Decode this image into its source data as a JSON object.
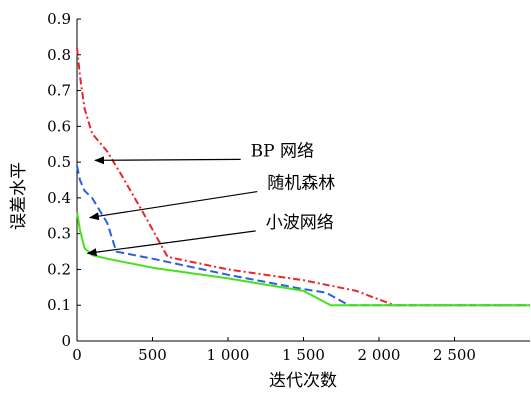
{
  "chart_data": {
    "type": "line",
    "title": "",
    "xlabel": "迭代次数",
    "ylabel": "误差水平",
    "xlim": [
      0,
      3000
    ],
    "ylim": [
      0,
      0.9
    ],
    "x_ticks": [
      {
        "value": 0,
        "label": "0"
      },
      {
        "value": 500,
        "label": "500"
      },
      {
        "value": 1000,
        "label": "1 000"
      },
      {
        "value": 1500,
        "label": "1 500"
      },
      {
        "value": 2000,
        "label": "2 000"
      },
      {
        "value": 2500,
        "label": "2 500"
      }
    ],
    "y_ticks": [
      {
        "value": 0,
        "label": "0"
      },
      {
        "value": 0.1,
        "label": "0.1"
      },
      {
        "value": 0.2,
        "label": "0.2"
      },
      {
        "value": 0.3,
        "label": "0.3"
      },
      {
        "value": 0.4,
        "label": "0.4"
      },
      {
        "value": 0.5,
        "label": "0.5"
      },
      {
        "value": 0.6,
        "label": "0.6"
      },
      {
        "value": 0.7,
        "label": "0.7"
      },
      {
        "value": 0.8,
        "label": "0.8"
      },
      {
        "value": 0.9,
        "label": "0.9"
      }
    ],
    "grid": false,
    "series": [
      {
        "name": "BP 网络",
        "color": "#e8262b",
        "dash": "dash-dot",
        "x": [
          0,
          20,
          50,
          100,
          200,
          300,
          450,
          600,
          1000,
          1500,
          1850,
          2100,
          3000
        ],
        "y": [
          0.82,
          0.74,
          0.65,
          0.58,
          0.53,
          0.46,
          0.35,
          0.235,
          0.2,
          0.17,
          0.14,
          0.1,
          0.1
        ]
      },
      {
        "name": "随机森林",
        "color": "#2a5fe0",
        "dash": "dashed",
        "x": [
          0,
          20,
          50,
          100,
          200,
          260,
          500,
          1000,
          1500,
          1650,
          1800,
          3000
        ],
        "y": [
          0.49,
          0.45,
          0.42,
          0.4,
          0.33,
          0.25,
          0.23,
          0.185,
          0.145,
          0.135,
          0.1,
          0.1
        ]
      },
      {
        "name": "小波网络",
        "color": "#46e01e",
        "dash": "solid",
        "x": [
          0,
          20,
          50,
          100,
          200,
          500,
          1000,
          1500,
          1680,
          3000
        ],
        "y": [
          0.36,
          0.31,
          0.26,
          0.24,
          0.23,
          0.205,
          0.175,
          0.14,
          0.1,
          0.1
        ]
      }
    ],
    "annotations": [
      {
        "text": "BP 网络",
        "label_x": 220,
        "label_y": 0.585,
        "target_x": 1150,
        "target_y": 0.53,
        "target_kind": "data",
        "arrow_to_x": 120,
        "arrow_to_y": 0.505
      },
      {
        "text": "随机森林",
        "label_x": 240,
        "label_y": 0.5,
        "target_x": 1260,
        "target_y": 0.44,
        "target_kind": "data",
        "arrow_to_x": 85,
        "arrow_to_y": 0.345
      },
      {
        "text": "小波网络",
        "label_x": 230,
        "label_y": 0.39,
        "target_x": 1250,
        "target_y": 0.33,
        "target_kind": "data",
        "arrow_to_x": 70,
        "arrow_to_y": 0.245
      }
    ]
  }
}
